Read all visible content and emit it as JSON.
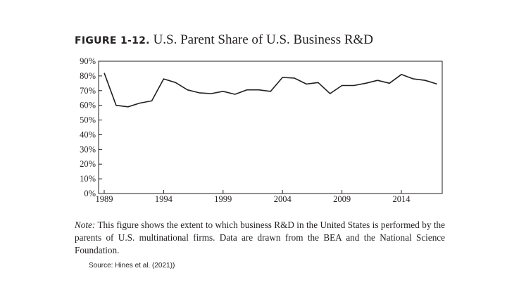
{
  "title": {
    "label": "FIGURE 1-12.",
    "text": "U.S. Parent Share of U.S. Business R&D"
  },
  "note": {
    "label": "Note:",
    "text": "This figure shows the extent to which business R&D in the United States is performed by the parents of U.S. multinational firms. Data are drawn from the BEA and the National Science Foundation."
  },
  "source": "Source: Hines et al. (2021))",
  "chart_data": {
    "type": "line",
    "title": "U.S. Parent Share of U.S. Business R&D",
    "xlabel": "",
    "ylabel": "",
    "x": [
      1989,
      1990,
      1991,
      1992,
      1993,
      1994,
      1995,
      1996,
      1997,
      1998,
      1999,
      2000,
      2001,
      2002,
      2003,
      2004,
      2005,
      2006,
      2007,
      2008,
      2009,
      2010,
      2011,
      2012,
      2013,
      2014,
      2015,
      2016,
      2017
    ],
    "series": [
      {
        "values": [
          82,
          60,
          59,
          61.5,
          63,
          78,
          75.5,
          70.5,
          68.5,
          68,
          69.5,
          67.5,
          70.5,
          70.5,
          69.5,
          79,
          78.5,
          74.5,
          75.5,
          68,
          73.5,
          73.5,
          75,
          77,
          75,
          81,
          78,
          77,
          74.5
        ]
      }
    ],
    "ylim": [
      0,
      90
    ],
    "xlim": [
      1988.5,
      2017.6
    ],
    "yticks": [
      0,
      10,
      20,
      30,
      40,
      50,
      60,
      70,
      80,
      90
    ],
    "ytick_labels": [
      "0%",
      "10%",
      "20%",
      "30%",
      "40%",
      "50%",
      "60%",
      "70%",
      "80%",
      "90%"
    ],
    "xticks": [
      1989,
      1994,
      1999,
      2004,
      2009,
      2014
    ],
    "xtick_labels": [
      "1989",
      "1994",
      "1999",
      "2004",
      "2009",
      "2014"
    ],
    "grid": false,
    "line_color": "#231f20"
  }
}
